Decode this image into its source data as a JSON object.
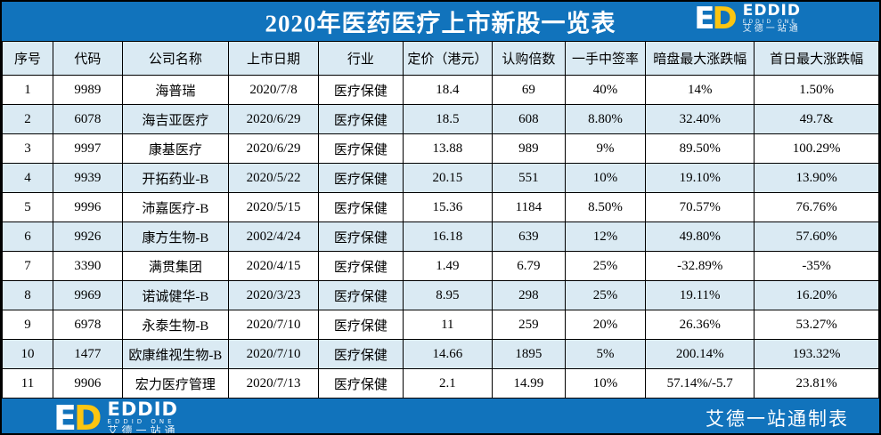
{
  "page": {
    "title": "2020年医药医疗上市新股一览表"
  },
  "logo": {
    "mono_e": "E",
    "mono_d": "D",
    "name": "EDDID",
    "sub": "EDDID ONE",
    "cn": "艾德一站通"
  },
  "footer": {
    "credit": "艾德一站通制表"
  },
  "colors": {
    "primary_blue": "#1173BC",
    "logo_yellow": "#FBC511",
    "row_alt": "#DAEAF3",
    "border": "#000000"
  },
  "chart_data": {
    "type": "table",
    "title": "2020年医药医疗上市新股一览表",
    "columns": [
      "序号",
      "代码",
      "公司名称",
      "上市日期",
      "行业",
      "定价（港元）",
      "认购倍数",
      "一手中签率",
      "暗盘最大涨跌幅",
      "首日最大涨跌幅"
    ],
    "column_keys": [
      "index",
      "code",
      "company",
      "list_date",
      "industry",
      "price_hkd",
      "subscription_multiple",
      "lot_win_rate",
      "grey_market_max_change",
      "first_day_max_change"
    ],
    "rows": [
      [
        "1",
        "9989",
        "海普瑞",
        "2020/7/8",
        "医疗保健",
        "18.4",
        "69",
        "40%",
        "14%",
        "1.50%"
      ],
      [
        "2",
        "6078",
        "海吉亚医疗",
        "2020/6/29",
        "医疗保健",
        "18.5",
        "608",
        "8.80%",
        "32.40%",
        "49.7&"
      ],
      [
        "3",
        "9997",
        "康基医疗",
        "2020/6/29",
        "医疗保健",
        "13.88",
        "989",
        "9%",
        "89.50%",
        "100.29%"
      ],
      [
        "4",
        "9939",
        "开拓药业-B",
        "2020/5/22",
        "医疗保健",
        "20.15",
        "551",
        "10%",
        "19.10%",
        "13.90%"
      ],
      [
        "5",
        "9996",
        "沛嘉医疗-B",
        "2020/5/15",
        "医疗保健",
        "15.36",
        "1184",
        "8.50%",
        "70.57%",
        "76.76%"
      ],
      [
        "6",
        "9926",
        "康方生物-B",
        "2002/4/24",
        "医疗保健",
        "16.18",
        "639",
        "12%",
        "49.80%",
        "57.60%"
      ],
      [
        "7",
        "3390",
        "满贯集团",
        "2020/4/15",
        "医疗保健",
        "1.49",
        "6.79",
        "25%",
        "-32.89%",
        "-35%"
      ],
      [
        "8",
        "9969",
        "诺诚健华-B",
        "2020/3/23",
        "医疗保健",
        "8.95",
        "298",
        "25%",
        "19.11%",
        "16.20%"
      ],
      [
        "9",
        "6978",
        "永泰生物-B",
        "2020/7/10",
        "医疗保健",
        "11",
        "259",
        "20%",
        "26.36%",
        "53.27%"
      ],
      [
        "10",
        "1477",
        "欧康维视生物-B",
        "2020/7/10",
        "医疗保健",
        "14.66",
        "1895",
        "5%",
        "200.14%",
        "193.32%"
      ],
      [
        "11",
        "9906",
        "宏力医疗管理",
        "2020/7/13",
        "医疗保健",
        "2.1",
        "14.99",
        "10%",
        "57.14%/-5.7",
        "23.81%"
      ]
    ]
  }
}
